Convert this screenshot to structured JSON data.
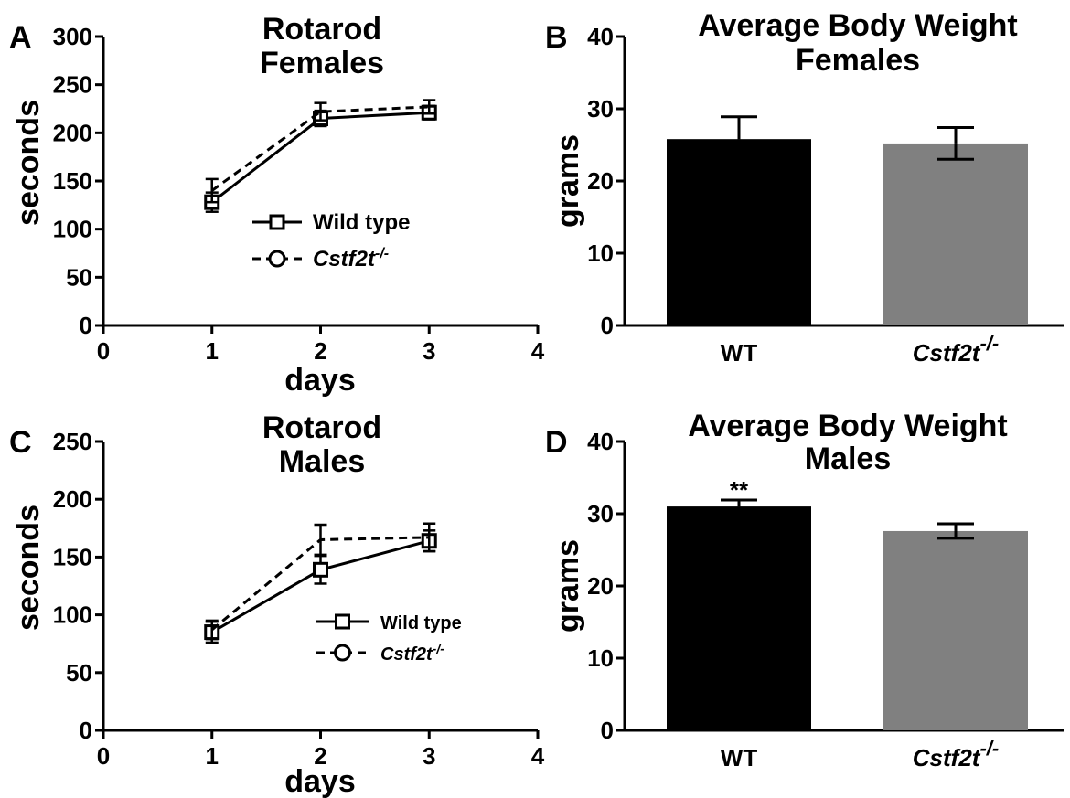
{
  "chart_data": [
    {
      "id": "A",
      "panel_letter": "A",
      "type": "line",
      "title": [
        "Rotarod",
        "Females"
      ],
      "xlabel": "days",
      "ylabel": "seconds",
      "xlim": [
        0,
        4
      ],
      "ylim": [
        0,
        300
      ],
      "xticks": [
        0,
        1,
        2,
        3,
        4
      ],
      "yticks": [
        0,
        50,
        100,
        150,
        200,
        250,
        300
      ],
      "x": [
        1,
        2,
        3
      ],
      "legend_position": "center",
      "legend_size": "large",
      "series": [
        {
          "name": "Wild type",
          "style": "solid",
          "marker": "square",
          "values": [
            128,
            215,
            221
          ],
          "errors": [
            10,
            8,
            7
          ]
        },
        {
          "name_main": "Cstf2t",
          "name_sup": "-/-",
          "style": "dashed",
          "marker": "circle",
          "values": [
            140,
            222,
            227
          ],
          "errors": [
            12,
            9,
            7
          ]
        }
      ]
    },
    {
      "id": "B",
      "panel_letter": "B",
      "type": "bar",
      "title": [
        "Average Body Weight",
        "Females"
      ],
      "ylabel": "grams",
      "ylim": [
        0,
        40
      ],
      "yticks": [
        0,
        10,
        20,
        30,
        40
      ],
      "bars": [
        {
          "label_main": "WT",
          "label_sup": "",
          "value": 25.8,
          "error": 3.1,
          "color": "#000000",
          "significance": ""
        },
        {
          "label_main": "Cstf2t",
          "label_sup": "-/-",
          "value": 25.2,
          "error": 2.2,
          "color": "#808080",
          "significance": ""
        }
      ]
    },
    {
      "id": "C",
      "panel_letter": "C",
      "type": "line",
      "title": [
        "Rotarod",
        "Males"
      ],
      "xlabel": "days",
      "ylabel": "seconds",
      "xlim": [
        0,
        4
      ],
      "ylim": [
        0,
        250
      ],
      "xticks": [
        0,
        1,
        2,
        3,
        4
      ],
      "yticks": [
        0,
        50,
        100,
        150,
        200,
        250
      ],
      "x": [
        1,
        2,
        3
      ],
      "legend_position": "center-right",
      "legend_size": "small",
      "series": [
        {
          "name": "Wild type",
          "style": "solid",
          "marker": "square",
          "values": [
            85,
            139,
            164
          ],
          "errors": [
            9,
            12,
            9
          ]
        },
        {
          "name_main": "Cstf2t",
          "name_sup": "-/-",
          "style": "dashed",
          "marker": "circle",
          "values": [
            87,
            165,
            167
          ],
          "errors": [
            8,
            13,
            12
          ]
        }
      ]
    },
    {
      "id": "D",
      "panel_letter": "D",
      "type": "bar",
      "title": [
        "Average Body Weight",
        "Males"
      ],
      "ylabel": "grams",
      "ylim": [
        0,
        40
      ],
      "yticks": [
        0,
        10,
        20,
        30,
        40
      ],
      "bars": [
        {
          "label_main": "WT",
          "label_sup": "",
          "value": 31.0,
          "error": 0.9,
          "color": "#000000",
          "significance": "**"
        },
        {
          "label_main": "Cstf2t",
          "label_sup": "-/-",
          "value": 27.6,
          "error": 1.0,
          "color": "#808080",
          "significance": ""
        }
      ]
    }
  ]
}
